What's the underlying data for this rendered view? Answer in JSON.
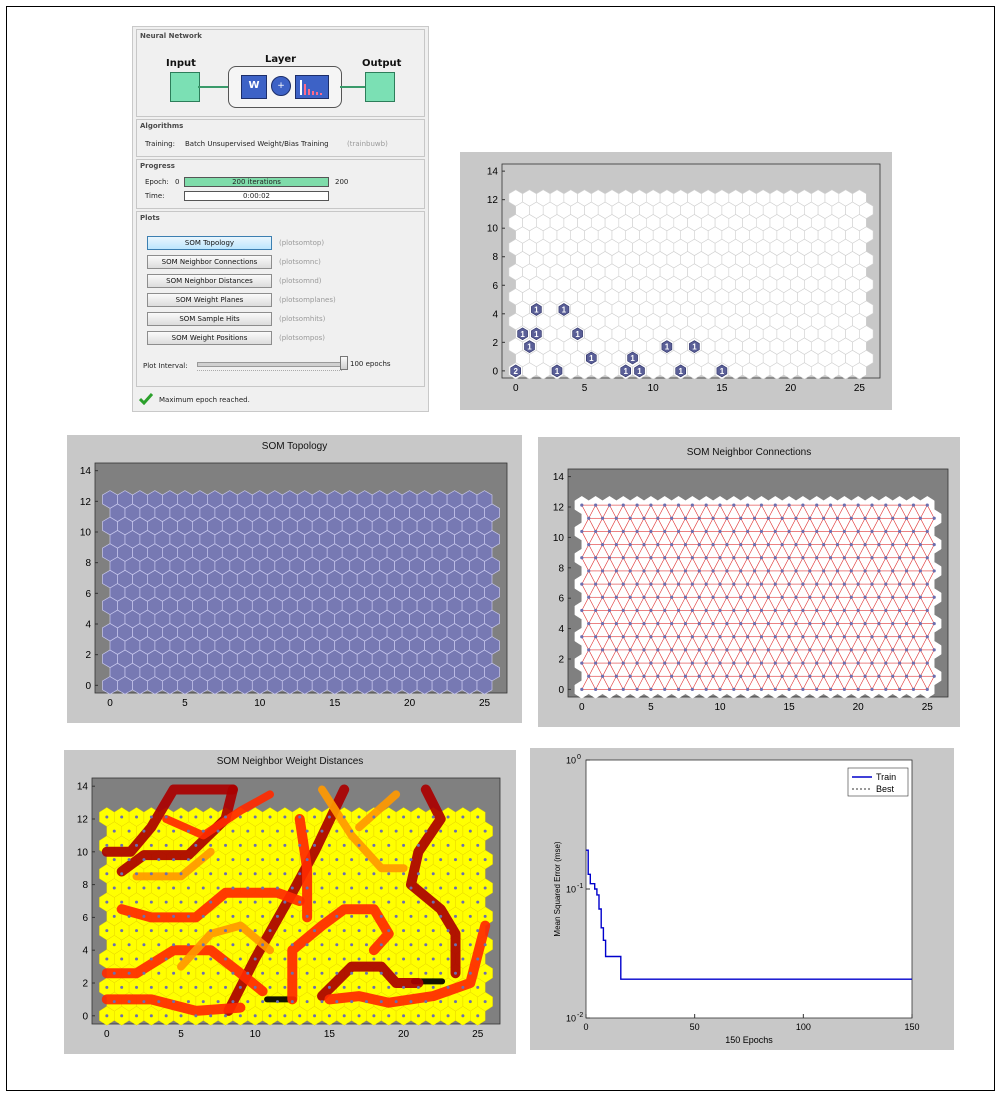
{
  "window": {
    "neural_network": {
      "title": "Neural Network",
      "input_label": "Input",
      "layer_label": "Layer",
      "output_label": "Output",
      "weight_symbol": "W",
      "sum_symbol": "+"
    },
    "algorithms": {
      "title": "Algorithms",
      "training_label": "Training:",
      "training_value": "Batch Unsupervised Weight/Bias Training",
      "training_fn": "(trainbuwb)"
    },
    "progress": {
      "title": "Progress",
      "epoch_label": "Epoch:",
      "epoch_start": "0",
      "epoch_bar_text": "200 iterations",
      "epoch_end": "200",
      "epoch_fraction": 1.0,
      "time_label": "Time:",
      "time_value": "0:00:02"
    },
    "plots": {
      "title": "Plots",
      "buttons": [
        {
          "label": "SOM Topology",
          "fn": "(plotsomtop)"
        },
        {
          "label": "SOM Neighbor Connections",
          "fn": "(plotsomnc)"
        },
        {
          "label": "SOM Neighbor Distances",
          "fn": "(plotsomnd)"
        },
        {
          "label": "SOM Weight Planes",
          "fn": "(plotsomplanes)"
        },
        {
          "label": "SOM Sample Hits",
          "fn": "(plotsomhits)"
        },
        {
          "label": "SOM Weight Positions",
          "fn": "(plotsompos)"
        }
      ],
      "interval_label": "Plot Interval:",
      "interval_value": "100 epochs"
    },
    "status": "Maximum epoch reached."
  },
  "colors": {
    "figure_bg": "#c8c8c8",
    "topology_fill": "#7779b3",
    "hits_marker": "#5a5f97",
    "train_line": "#0000cc",
    "network_block": "#7be0b4",
    "check_green": "#2ca02c"
  },
  "chart_data": [
    {
      "type": "scatter",
      "name": "sample_hits",
      "title": "",
      "grid": "hexagonal 26x15",
      "xlim": [
        -1,
        26.5
      ],
      "ylim": [
        -0.5,
        14.5
      ],
      "xticks": [
        "0",
        "5",
        "10",
        "15",
        "20",
        "25"
      ],
      "yticks": [
        "0",
        "2",
        "4",
        "6",
        "8",
        "10",
        "12",
        "14"
      ],
      "points": [
        {
          "x": 0,
          "y": 0,
          "hits": "2"
        },
        {
          "x": 1.5,
          "y": 4.3,
          "hits": "1"
        },
        {
          "x": 3.5,
          "y": 4.3,
          "hits": "1"
        },
        {
          "x": 0.5,
          "y": 2.6,
          "hits": "1"
        },
        {
          "x": 1.5,
          "y": 2.6,
          "hits": "1"
        },
        {
          "x": 4.5,
          "y": 2.6,
          "hits": "1"
        },
        {
          "x": 1,
          "y": 1.7,
          "hits": "1"
        },
        {
          "x": 11,
          "y": 1.7,
          "hits": "1"
        },
        {
          "x": 13,
          "y": 1.7,
          "hits": "1"
        },
        {
          "x": 5.5,
          "y": 0.9,
          "hits": "1"
        },
        {
          "x": 8.5,
          "y": 0.9,
          "hits": "1"
        },
        {
          "x": 3,
          "y": 0,
          "hits": "1"
        },
        {
          "x": 8,
          "y": 0,
          "hits": "1"
        },
        {
          "x": 9,
          "y": 0,
          "hits": "1"
        },
        {
          "x": 12,
          "y": 0,
          "hits": "1"
        },
        {
          "x": 15,
          "y": 0,
          "hits": "1"
        }
      ]
    },
    {
      "type": "scatter",
      "name": "topology",
      "title": "SOM Topology",
      "grid": "hexagonal 26x15",
      "xlim": [
        -1,
        26.5
      ],
      "ylim": [
        -0.5,
        14.5
      ],
      "xticks": [
        "0",
        "5",
        "10",
        "15",
        "20",
        "25"
      ],
      "yticks": [
        "0",
        "2",
        "4",
        "6",
        "8",
        "10",
        "12",
        "14"
      ]
    },
    {
      "type": "scatter",
      "name": "neighbor_connections",
      "title": "SOM Neighbor Connections",
      "grid": "hexagonal 26x15",
      "xlim": [
        -1,
        26.5
      ],
      "ylim": [
        -0.5,
        14.5
      ],
      "xticks": [
        "0",
        "5",
        "10",
        "15",
        "20",
        "25"
      ],
      "yticks": [
        "0",
        "2",
        "4",
        "6",
        "8",
        "10",
        "12",
        "14"
      ]
    },
    {
      "type": "heatmap",
      "name": "neighbor_weight_distances",
      "title": "SOM Neighbor Weight Distances",
      "grid": "hexagonal 26x15",
      "xlim": [
        -1,
        26.5
      ],
      "ylim": [
        -0.5,
        14.5
      ],
      "xticks": [
        "0",
        "5",
        "10",
        "15",
        "20",
        "25"
      ],
      "yticks": [
        "0",
        "2",
        "4",
        "6",
        "8",
        "10",
        "12",
        "14"
      ],
      "colormap": [
        "#ffff00",
        "#ff9900",
        "#ff2a00",
        "#aa0000",
        "#000000"
      ]
    },
    {
      "type": "line",
      "name": "performance",
      "title": "",
      "xlabel": "150 Epochs",
      "ylabel": "Mean Squared Error  (mse)",
      "xlim": [
        0,
        150
      ],
      "ylim": [
        0.01,
        1
      ],
      "yscale": "log",
      "xticks": [
        "0",
        "50",
        "100",
        "150"
      ],
      "yticks": [
        "10^0",
        "10^-1",
        "10^-2"
      ],
      "legend_position": "top-right",
      "series": [
        {
          "name": "Train",
          "style": "solid",
          "x": [
            0,
            1,
            2,
            4,
            5,
            6,
            7,
            8,
            9,
            10,
            15,
            16,
            17,
            150
          ],
          "y": [
            0.2,
            0.13,
            0.11,
            0.1,
            0.09,
            0.07,
            0.05,
            0.04,
            0.03,
            0.03,
            0.03,
            0.02,
            0.02,
            0.02
          ]
        },
        {
          "name": "Best",
          "style": "dashed",
          "x": [],
          "y": []
        }
      ]
    }
  ]
}
